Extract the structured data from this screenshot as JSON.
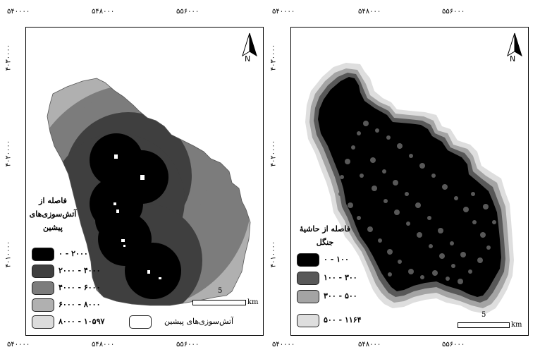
{
  "coords": {
    "x_left": [
      "۵۴۰۰۰۰",
      "۵۴۸۰۰۰",
      "۵۵۶۰۰۰"
    ],
    "x_right": [
      "۵۴۰۰۰۰",
      "۵۴۸۰۰۰",
      "۵۵۶۰۰۰"
    ],
    "y": [
      "۴۰۳۰۰۰۰",
      "۴۰۲۰۰۰۰",
      "۴۰۱۰۰۰۰"
    ]
  },
  "north_label": "N",
  "scale_bar": {
    "value": "5",
    "unit": "km"
  },
  "left_map": {
    "legend_title_lines": [
      "فاصله از",
      "آتش‌سوزی‌های",
      "پیشین"
    ],
    "legend": [
      {
        "label": "۰ - ۲۰۰۰",
        "color": "#000000"
      },
      {
        "label": "۲۰۰۰ - ۴۰۰۰",
        "color": "#3f3f3f"
      },
      {
        "label": "۴۰۰۰ - ۶۰۰۰",
        "color": "#7c7c7c"
      },
      {
        "label": "۶۰۰۰ - ۸۰۰۰",
        "color": "#b0b0b0"
      },
      {
        "label": "۸۰۰۰ - ۱۰۵۹۷",
        "color": "#dcdcdc"
      }
    ],
    "previous_fires_label": "آتش‌سوزی‌های پیشین"
  },
  "right_map": {
    "legend_title_lines": [
      "فاصله از حاشیۀ",
      "جنگل"
    ],
    "legend": [
      {
        "label": "۰ - ۱۰۰",
        "color": "#000000"
      },
      {
        "label": "۱۰۰ - ۳۰۰",
        "color": "#585858"
      },
      {
        "label": "۳۰۰ - ۵۰۰",
        "color": "#a4a4a4"
      },
      {
        "label": "۵۰۰ - ۱۱۶۴",
        "color": "#dedede"
      }
    ]
  }
}
